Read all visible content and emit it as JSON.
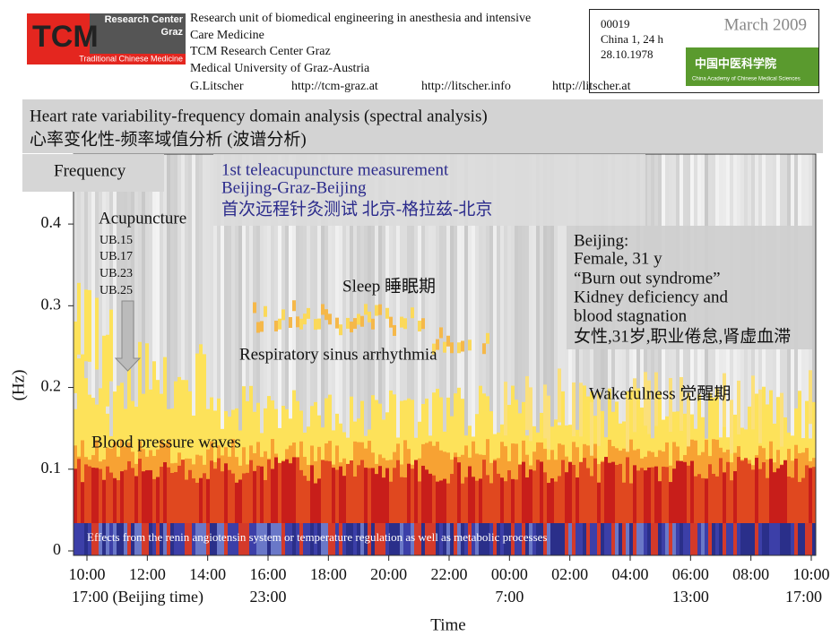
{
  "header": {
    "logo": [
      "Research Center",
      "Graz",
      "Traditional Chinese Medicine"
    ],
    "affiliation": [
      "Research unit of biomedical engineering in anesthesia and intensive",
      "Care Medicine",
      "TCM Research Center Graz",
      "Medical University of Graz-Austria"
    ],
    "links": [
      "G.Litscher",
      "http://tcm-graz.at",
      "http://litscher.info",
      "http://litscher.at"
    ],
    "id_box": [
      "00019",
      "China 1, 24 h",
      "28.10.1978"
    ],
    "date": "March 2009",
    "cas_logo": [
      "中国中医科学院",
      "China Academy of Chinese Medical Sciences"
    ]
  },
  "banner": [
    "Heart rate variability-frequency domain analysis (spectral analysis)",
    "心率变化性-频率域值分析 (波谱分析)"
  ],
  "chart_data": {
    "type": "spectrogram",
    "frequency_box": "Frequency",
    "ylabel": "(Hz)",
    "xlabel": "Time",
    "ylim": [
      0,
      0.49
    ],
    "yticks": [
      0,
      0.1,
      0.2,
      0.3,
      0.4
    ],
    "xticks": [
      "10:00",
      "12:00",
      "14:00",
      "16:00",
      "18:00",
      "20:00",
      "22:00",
      "00:00",
      "02:00",
      "04:00",
      "06:00",
      "08:00",
      "10:00"
    ],
    "xticks_beijing": [
      "17:00 (Beijing time)",
      null,
      null,
      "23:00",
      null,
      null,
      null,
      "7:00",
      null,
      null,
      "13:00",
      null,
      "17:00"
    ],
    "measurement": [
      "1st teleacupuncture measurement",
      "Beijing-Graz-Beijing",
      "首次远程针灸测试 北京-格拉兹-北京"
    ],
    "acupuncture": "Acupuncture",
    "points": [
      "UB.15",
      "UB.17",
      "UB.23",
      "UB.25"
    ],
    "sleep": "Sleep 睡眠期",
    "rsa": "Respiratory sinus arrhythmia",
    "wakefulness": "Wakefulness 觉醒期",
    "bp_waves": "Blood pressure waves",
    "patient": [
      "Beijing:",
      "Female, 31 y",
      "“Burn out syndrome”",
      "Kidney deficiency and",
      "blood stagnation",
      "女性,31岁,职业倦怠,肾虚血滞"
    ],
    "baseline_note": "Effects from the renin angiotensin system or temperature regulation as well as metabolic processes"
  }
}
